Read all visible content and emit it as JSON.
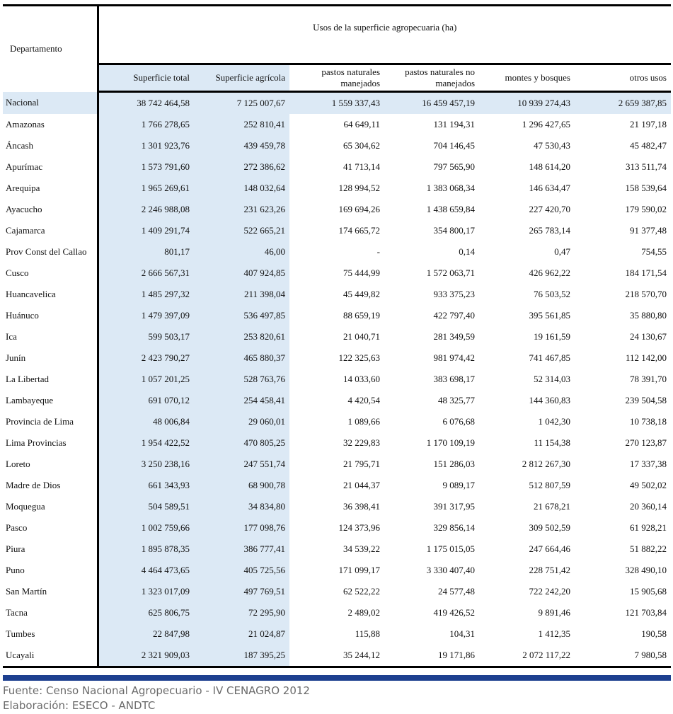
{
  "table": {
    "dept_header": "Departamento",
    "group_header": "Usos de la superficie agropecuaria (ha)",
    "columns": [
      "Superficie total",
      "Superficie agrícola",
      "pastos naturales manejados",
      "pastos naturales no manejados",
      "montes y bosques",
      "otros usos"
    ],
    "rows": [
      [
        "Nacional",
        "38 742 464,58",
        "7 125 007,67",
        "1 559 337,43",
        "16 459 457,19",
        "10 939 274,43",
        "2 659 387,85"
      ],
      [
        "Amazonas",
        "1 766 278,65",
        "252 810,41",
        "64 649,11",
        "131 194,31",
        "1 296 427,65",
        "21 197,18"
      ],
      [
        "Áncash",
        "1 301 923,76",
        "439 459,78",
        "65 304,62",
        "704 146,45",
        "47 530,43",
        "45 482,47"
      ],
      [
        "Apurímac",
        "1 573 791,60",
        "272 386,62",
        "41 713,14",
        "797 565,90",
        "148 614,20",
        "313 511,74"
      ],
      [
        "Arequipa",
        "1 965 269,61",
        "148 032,64",
        "128 994,52",
        "1 383 068,34",
        "146 634,47",
        "158 539,64"
      ],
      [
        "Ayacucho",
        "2 246 988,08",
        "231 623,26",
        "169 694,26",
        "1 438 659,84",
        "227 420,70",
        "179 590,02"
      ],
      [
        "Cajamarca",
        "1 409 291,74",
        "522 665,21",
        "174 665,72",
        "354 800,17",
        "265 783,14",
        "91 377,48"
      ],
      [
        "Prov Const del Callao",
        "801,17",
        "46,00",
        "-",
        "0,14",
        "0,47",
        "754,55"
      ],
      [
        "Cusco",
        "2 666 567,31",
        "407 924,85",
        "75 444,99",
        "1 572 063,71",
        "426 962,22",
        "184 171,54"
      ],
      [
        "Huancavelica",
        "1 485 297,32",
        "211 398,04",
        "45 449,82",
        "933 375,23",
        "76 503,52",
        "218 570,70"
      ],
      [
        "Huánuco",
        "1 479 397,09",
        "536 497,85",
        "88 659,19",
        "422 797,40",
        "395 561,85",
        "35 880,80"
      ],
      [
        "Ica",
        "599 503,17",
        "253 820,61",
        "21 040,71",
        "281 349,59",
        "19 161,59",
        "24 130,67"
      ],
      [
        "Junín",
        "2 423 790,27",
        "465 880,37",
        "122 325,63",
        "981 974,42",
        "741 467,85",
        "112 142,00"
      ],
      [
        "La Libertad",
        "1 057 201,25",
        "528 763,76",
        "14 033,60",
        "383 698,17",
        "52 314,03",
        "78 391,70"
      ],
      [
        "Lambayeque",
        "691 070,12",
        "254 458,41",
        "4 420,54",
        "48 325,77",
        "144 360,83",
        "239 504,58"
      ],
      [
        "Provincia de Lima",
        "48 006,84",
        "29 060,01",
        "1 089,66",
        "6 076,68",
        "1 042,30",
        "10 738,18"
      ],
      [
        "Lima Provincias",
        "1 954 422,52",
        "470 805,25",
        "32 229,83",
        "1 170 109,19",
        "11 154,38",
        "270 123,87"
      ],
      [
        "Loreto",
        "3 250 238,16",
        "247 551,74",
        "21 795,71",
        "151 286,03",
        "2 812 267,30",
        "17 337,38"
      ],
      [
        "Madre de Dios",
        "661 343,93",
        "68 900,78",
        "21 044,37",
        "9 089,17",
        "512 807,59",
        "49 502,02"
      ],
      [
        "Moquegua",
        "504 589,51",
        "34 834,80",
        "36 398,41",
        "391 317,95",
        "21 678,21",
        "20 360,14"
      ],
      [
        "Pasco",
        "1 002 759,66",
        "177 098,76",
        "124 373,96",
        "329 856,14",
        "309 502,59",
        "61 928,21"
      ],
      [
        "Piura",
        "1 895 878,35",
        "386 777,41",
        "34 539,22",
        "1 175 015,05",
        "247 664,46",
        "51 882,22"
      ],
      [
        "Puno",
        "4 464 473,65",
        "405 725,56",
        "171 099,17",
        "3 330 407,40",
        "228 751,42",
        "328 490,10"
      ],
      [
        "San Martín",
        "1 323 017,09",
        "497 769,51",
        "62 522,22",
        "24 577,48",
        "722 242,20",
        "15 905,68"
      ],
      [
        "Tacna",
        "625 806,75",
        "72 295,90",
        "2 489,02",
        "419 426,52",
        "9 891,46",
        "121 703,84"
      ],
      [
        "Tumbes",
        "22 847,98",
        "21 024,87",
        "115,88",
        "104,31",
        "1 412,35",
        "190,58"
      ],
      [
        "Ucayali",
        "2 321 909,03",
        "187 395,25",
        "35 244,12",
        "19 171,86",
        "2 072 117,22",
        "7 980,58"
      ]
    ]
  },
  "footer": {
    "source": "Fuente: Censo Nacional Agropecuario - IV CENAGRO 2012",
    "elaboration": "Elaboración: ESECO - ANDTC"
  },
  "colors": {
    "shade": "#dce9f5",
    "bar": "#1d3f8f",
    "footer_text": "#6b6b6b"
  }
}
